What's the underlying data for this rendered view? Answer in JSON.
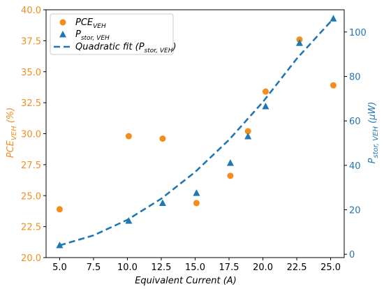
{
  "chart_data": {
    "type": "scatter",
    "xlabel": "Equivalent Current (A)",
    "ylabel_left": {
      "base": "PCE",
      "sub": "VEH",
      "suffix": " (%)"
    },
    "ylabel_right": {
      "base": "P",
      "sub": "stor, VEH",
      "suffix": " (μW)"
    },
    "xlim": [
      4.0,
      26.0
    ],
    "ylim_left": [
      20.0,
      40.0
    ],
    "ylim_right": [
      -1.5,
      110.0
    ],
    "xticks": [
      "5.0",
      "7.5",
      "10.0",
      "12.5",
      "15.0",
      "17.5",
      "20.0",
      "22.5",
      "25.0"
    ],
    "yticks_left": [
      "20.0",
      "22.5",
      "25.0",
      "27.5",
      "30.0",
      "32.5",
      "35.0",
      "37.5",
      "40.0"
    ],
    "yticks_right": [
      "0",
      "20",
      "40",
      "60",
      "80",
      "100"
    ],
    "legend_position": "top-left",
    "series": [
      {
        "name": {
          "base": "PCE",
          "sub": "VEH"
        },
        "axis": "left",
        "marker": "circle",
        "color": "#f28e1c",
        "x": [
          5.0,
          10.1,
          12.6,
          15.1,
          17.6,
          18.9,
          20.2,
          22.7,
          25.2
        ],
        "y": [
          23.9,
          29.8,
          29.6,
          24.4,
          26.6,
          30.2,
          33.4,
          37.6,
          33.9
        ]
      },
      {
        "name": {
          "base": "P",
          "sub": "stor, VEH"
        },
        "axis": "right",
        "marker": "triangle",
        "color": "#1f77b4",
        "x": [
          5.0,
          10.1,
          12.6,
          15.1,
          17.6,
          18.9,
          20.2,
          22.7,
          25.2
        ],
        "y": [
          4.0,
          15.0,
          23.0,
          27.5,
          41.0,
          53.0,
          66.5,
          95.0,
          106.0
        ]
      },
      {
        "name": {
          "base": "Quadratic fit (P",
          "sub": "stor, VEH",
          "suffix": ")"
        },
        "axis": "right",
        "style": "dashed-line",
        "color": "#1f77b4",
        "x": [
          5.0,
          7.5,
          10.0,
          12.5,
          15.0,
          17.5,
          20.0,
          22.5,
          25.2
        ],
        "y": [
          4.0,
          8.5,
          15.5,
          25.0,
          37.0,
          51.5,
          68.5,
          88.0,
          106.0
        ]
      }
    ]
  },
  "colors": {
    "left_axis": "#f28e1c",
    "right_axis": "#1f77b4",
    "axis_line": "#000000"
  }
}
